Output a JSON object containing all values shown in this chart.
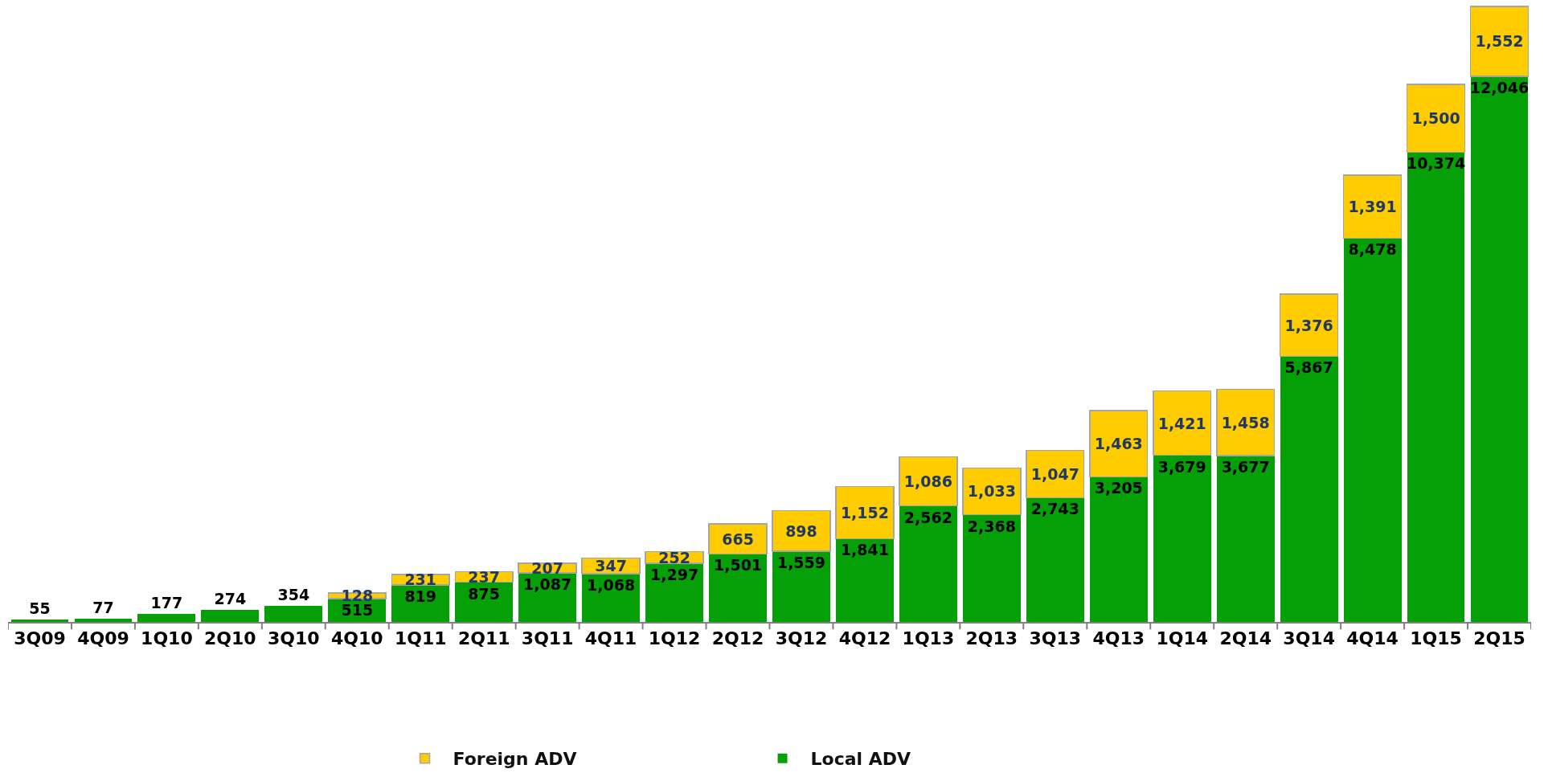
{
  "chart_data": {
    "type": "bar",
    "stacked": true,
    "legend": "bottom",
    "tick_labels": "x",
    "categories": [
      "3Q09",
      "4Q09",
      "1Q10",
      "2Q10",
      "3Q10",
      "4Q10",
      "1Q11",
      "2Q11",
      "3Q11",
      "4Q11",
      "1Q12",
      "2Q12",
      "3Q12",
      "4Q12",
      "1Q13",
      "2Q13",
      "3Q13",
      "4Q13",
      "1Q14",
      "2Q14",
      "3Q14",
      "4Q14",
      "1Q15",
      "2Q15"
    ],
    "ylim": [
      0,
      13700
    ],
    "series": [
      {
        "name": "Local ADV",
        "color": "#05a008",
        "values": [
          55,
          77,
          177,
          274,
          354,
          515,
          819,
          875,
          1087,
          1068,
          1297,
          1501,
          1559,
          1841,
          2562,
          2368,
          2743,
          3205,
          3679,
          3677,
          5867,
          8478,
          10374,
          12046
        ],
        "value_labels": [
          "55",
          "77",
          "177",
          "274",
          "354",
          "515",
          "819",
          "875",
          "1,087",
          "1,068",
          "1,297",
          "1,501",
          "1,559",
          "1,841",
          "2,562",
          "2,368",
          "2,743",
          "3,205",
          "3,679",
          "3,677",
          "5,867",
          "8,478",
          "10,374",
          "12,046"
        ]
      },
      {
        "name": "Foreign ADV",
        "color": "#ffcc00",
        "values": [
          null,
          null,
          null,
          null,
          null,
          128,
          231,
          237,
          207,
          347,
          252,
          665,
          898,
          1152,
          1086,
          1033,
          1047,
          1463,
          1421,
          1458,
          1376,
          1391,
          1500,
          1552
        ],
        "value_labels": [
          null,
          null,
          null,
          null,
          null,
          "128",
          "231",
          "237",
          "207",
          "347",
          "252",
          "665",
          "898",
          "1,152",
          "1,086",
          "1,033",
          "1,047",
          "1,463",
          "1,421",
          "1,458",
          "1,376",
          "1,391",
          "1,500",
          "1,552"
        ]
      }
    ]
  }
}
